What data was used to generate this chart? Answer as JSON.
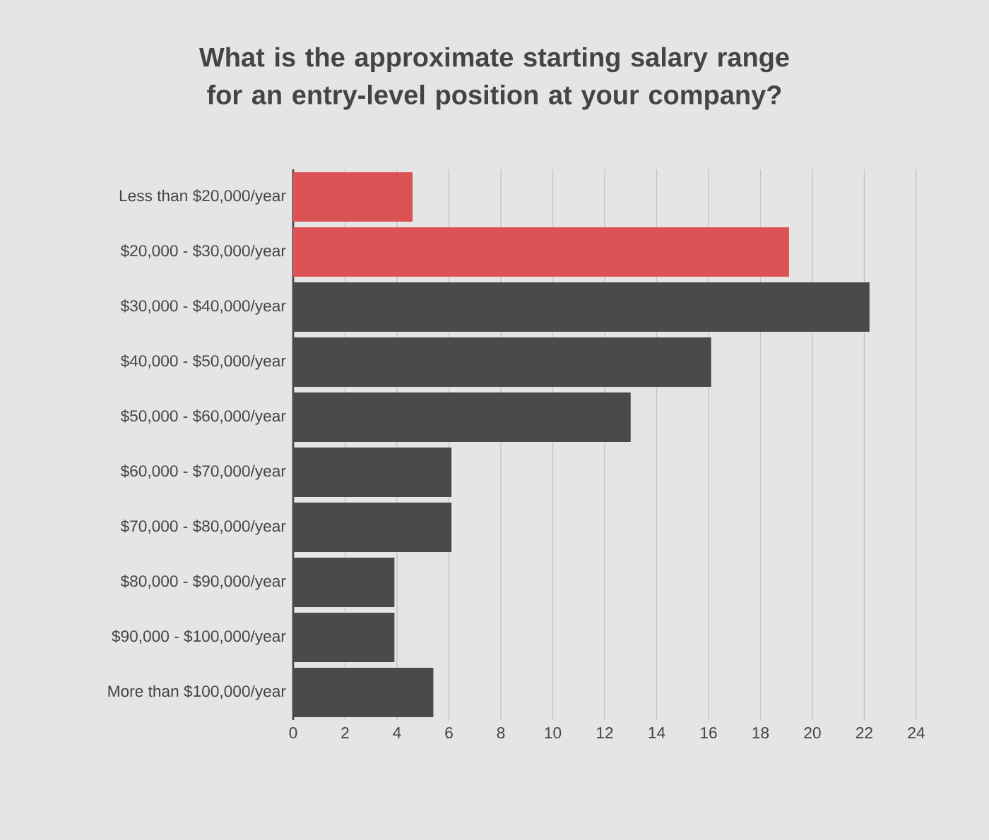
{
  "chart_data": {
    "type": "bar",
    "orientation": "horizontal",
    "title": "What is the approximate starting salary range for an entry-level position at your company?",
    "categories": [
      "Less than $20,000/year",
      "$20,000 - $30,000/year",
      "$30,000 - $40,000/year",
      "$40,000 - $50,000/year",
      "$50,000 - $60,000/year",
      "$60,000 - $70,000/year",
      "$70,000 - $80,000/year",
      "$80,000 - $90,000/year",
      "$90,000 - $100,000/year",
      "More than $100,000/year"
    ],
    "values": [
      4.6,
      19.1,
      22.2,
      16.1,
      13.0,
      6.1,
      6.1,
      3.9,
      3.9,
      5.4
    ],
    "colors": [
      "#dc5355",
      "#dc5355",
      "#4a4a4a",
      "#4a4a4a",
      "#4a4a4a",
      "#4a4a4a",
      "#4a4a4a",
      "#4a4a4a",
      "#4a4a4a",
      "#4a4a4a"
    ],
    "xlim": [
      0,
      24
    ],
    "xticks": [
      0,
      2,
      4,
      6,
      8,
      10,
      12,
      14,
      16,
      18,
      20,
      22,
      24
    ],
    "grid": "x"
  }
}
